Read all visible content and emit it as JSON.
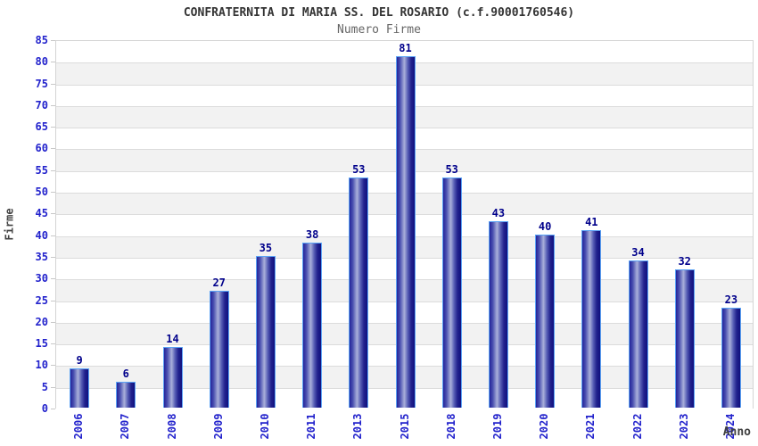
{
  "header": {
    "title": "CONFRATERNITA DI MARIA SS. DEL ROSARIO (c.f.90001760546)",
    "subtitle": "Numero Firme"
  },
  "chart_data": {
    "type": "bar",
    "title": "CONFRATERNITA DI MARIA SS. DEL ROSARIO (c.f.90001760546)",
    "subtitle": "Numero Firme",
    "categories": [
      "2006",
      "2007",
      "2008",
      "2009",
      "2010",
      "2011",
      "2013",
      "2015",
      "2018",
      "2019",
      "2020",
      "2021",
      "2022",
      "2023",
      "2024"
    ],
    "values": [
      9,
      6,
      14,
      27,
      35,
      38,
      53,
      81,
      53,
      43,
      40,
      41,
      34,
      32,
      23
    ],
    "xlabel": "Anno",
    "ylabel": "Firme",
    "ylim": [
      0,
      85
    ],
    "ytick_step": 5,
    "yticks": [
      0,
      5,
      10,
      15,
      20,
      25,
      30,
      35,
      40,
      45,
      50,
      55,
      60,
      65,
      70,
      75,
      80,
      85
    ],
    "grid": "horizontal, alternating bands",
    "legend": "none",
    "value_labels": "above bars",
    "colors": {
      "bar_edge_dark": "#10107e",
      "bar_mid_dark": "#24249a",
      "bar_highlight": "#aab0da",
      "bar_border": "#5ba3f5",
      "axis_text": "#2222cc",
      "value_label": "#00008b",
      "title_text": "#333333",
      "subtitle_text": "#666666",
      "axis_title_text": "#404040",
      "band_gray": "#f2f2f2",
      "gridline": "#dcdcdc",
      "plot_border": "#d4d4d4",
      "background": "#ffffff"
    }
  }
}
